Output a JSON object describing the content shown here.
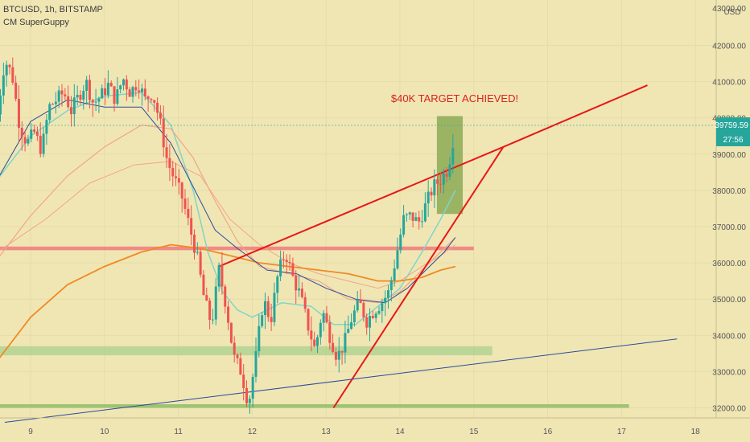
{
  "header": {
    "symbol_line": "BTCUSD, 1h, BITSTAMP",
    "indicator": "CM SuperGuppy",
    "currency": "USD"
  },
  "annotation": "$40K TARGET ACHIEVED!",
  "price_label": {
    "value": "39759.59",
    "countdown": "27:56"
  },
  "colors": {
    "background": "#f0e6b4",
    "candle_up": "#26a69a",
    "candle_down": "#ef5350",
    "trendline": "#e81717",
    "resistance": "#f08080",
    "support_zone": "#a9d08e",
    "ema_fast": "#7fd6c8",
    "ema_slow": "#f3a587",
    "ema_long": "#f08a24",
    "blue_line": "#2a4b9b",
    "target_box": "#7ea34a"
  },
  "chart_data": {
    "type": "candlestick",
    "title": "BTCUSD, 1h, BITSTAMP",
    "ylim": [
      31500,
      43300
    ],
    "x_range": [
      8.55,
      18.2
    ],
    "x_ticks": [
      "9",
      "10",
      "11",
      "12",
      "13",
      "14",
      "15",
      "16",
      "17",
      "18"
    ],
    "y_ticks": [
      "32000.00",
      "33000.00",
      "34000.00",
      "35000.00",
      "36000.00",
      "37000.00",
      "38000.00",
      "39000.00",
      "40000.00",
      "41000.00",
      "42000.00"
    ],
    "y_top_partial": "43000.00",
    "close_path": [
      [
        8.55,
        40100
      ],
      [
        8.65,
        41600
      ],
      [
        8.75,
        41200
      ],
      [
        8.85,
        39800
      ],
      [
        8.95,
        39300
      ],
      [
        9.05,
        39600
      ],
      [
        9.15,
        39100
      ],
      [
        9.25,
        40300
      ],
      [
        9.35,
        40500
      ],
      [
        9.45,
        40700
      ],
      [
        9.55,
        40200
      ],
      [
        9.65,
        40600
      ],
      [
        9.75,
        41000
      ],
      [
        9.85,
        40400
      ],
      [
        9.95,
        40600
      ],
      [
        10.05,
        40900
      ],
      [
        10.15,
        40500
      ],
      [
        10.25,
        41100
      ],
      [
        10.35,
        40700
      ],
      [
        10.45,
        41000
      ],
      [
        10.55,
        40500
      ],
      [
        10.65,
        40700
      ],
      [
        10.75,
        39900
      ],
      [
        10.85,
        38800
      ],
      [
        10.95,
        38300
      ],
      [
        11.05,
        37800
      ],
      [
        11.15,
        37000
      ],
      [
        11.25,
        36200
      ],
      [
        11.35,
        35000
      ],
      [
        11.45,
        34300
      ],
      [
        11.55,
        35800
      ],
      [
        11.65,
        34800
      ],
      [
        11.75,
        33400
      ],
      [
        11.85,
        33000
      ],
      [
        11.95,
        32100
      ],
      [
        12.05,
        33400
      ],
      [
        12.15,
        35000
      ],
      [
        12.25,
        34400
      ],
      [
        12.35,
        35700
      ],
      [
        12.45,
        36300
      ],
      [
        12.55,
        35600
      ],
      [
        12.65,
        35100
      ],
      [
        12.75,
        34300
      ],
      [
        12.85,
        33600
      ],
      [
        12.95,
        34700
      ],
      [
        13.05,
        34000
      ],
      [
        13.15,
        33400
      ],
      [
        13.25,
        33800
      ],
      [
        13.35,
        34500
      ],
      [
        13.45,
        34900
      ],
      [
        13.55,
        34400
      ],
      [
        13.65,
        34700
      ],
      [
        13.75,
        34900
      ],
      [
        13.85,
        35200
      ],
      [
        13.95,
        36200
      ],
      [
        14.05,
        37200
      ],
      [
        14.15,
        37300
      ],
      [
        14.25,
        37100
      ],
      [
        14.35,
        37600
      ],
      [
        14.45,
        38100
      ],
      [
        14.55,
        38300
      ],
      [
        14.65,
        38600
      ],
      [
        14.75,
        39760
      ]
    ],
    "lines": [
      {
        "name": "ema_fast",
        "points": [
          [
            8.55,
            38300
          ],
          [
            9.0,
            39500
          ],
          [
            9.5,
            40200
          ],
          [
            10.0,
            40600
          ],
          [
            10.5,
            40700
          ],
          [
            10.9,
            39800
          ],
          [
            11.2,
            38000
          ],
          [
            11.4,
            36300
          ],
          [
            11.6,
            35200
          ],
          [
            11.8,
            34700
          ],
          [
            12.0,
            34500
          ],
          [
            12.4,
            34900
          ],
          [
            12.8,
            34800
          ],
          [
            13.1,
            34300
          ],
          [
            13.4,
            34300
          ],
          [
            13.7,
            34800
          ],
          [
            14.0,
            35300
          ],
          [
            14.3,
            36300
          ],
          [
            14.55,
            37200
          ],
          [
            14.75,
            38000
          ]
        ]
      },
      {
        "name": "ema_slow",
        "points": [
          [
            8.55,
            36100
          ],
          [
            9.0,
            37300
          ],
          [
            9.5,
            38400
          ],
          [
            10.0,
            39200
          ],
          [
            10.5,
            39800
          ],
          [
            10.9,
            39700
          ],
          [
            11.2,
            38900
          ],
          [
            11.5,
            37700
          ],
          [
            11.8,
            36600
          ],
          [
            12.1,
            35900
          ],
          [
            12.5,
            35700
          ],
          [
            12.9,
            35500
          ],
          [
            13.3,
            35000
          ],
          [
            13.7,
            34900
          ],
          [
            14.0,
            35200
          ],
          [
            14.3,
            35800
          ],
          [
            14.55,
            36300
          ],
          [
            14.75,
            36700
          ]
        ]
      },
      {
        "name": "ema_slow_band",
        "points": [
          [
            8.55,
            36300
          ],
          [
            9.2,
            37200
          ],
          [
            9.8,
            38200
          ],
          [
            10.4,
            38700
          ],
          [
            10.9,
            38800
          ],
          [
            11.3,
            38400
          ],
          [
            11.7,
            37200
          ],
          [
            12.1,
            36500
          ],
          [
            12.5,
            36000
          ],
          [
            12.9,
            35700
          ],
          [
            13.3,
            35500
          ],
          [
            13.7,
            35300
          ],
          [
            14.0,
            35500
          ],
          [
            14.3,
            35900
          ],
          [
            14.55,
            36200
          ],
          [
            14.75,
            36500
          ]
        ]
      },
      {
        "name": "ema_long",
        "points": [
          [
            8.55,
            33300
          ],
          [
            9.0,
            34500
          ],
          [
            9.5,
            35400
          ],
          [
            10.0,
            35900
          ],
          [
            10.5,
            36300
          ],
          [
            10.9,
            36500
          ],
          [
            11.3,
            36400
          ],
          [
            11.7,
            36200
          ],
          [
            12.1,
            36000
          ],
          [
            12.5,
            35900
          ],
          [
            12.9,
            35800
          ],
          [
            13.3,
            35700
          ],
          [
            13.7,
            35500
          ],
          [
            14.0,
            35500
          ],
          [
            14.3,
            35600
          ],
          [
            14.55,
            35800
          ],
          [
            14.75,
            35900
          ]
        ]
      },
      {
        "name": "blue_line",
        "points": [
          [
            8.55,
            38300
          ],
          [
            9.0,
            39900
          ],
          [
            9.5,
            40500
          ],
          [
            10.0,
            40300
          ],
          [
            10.5,
            40300
          ],
          [
            10.9,
            39300
          ],
          [
            11.2,
            38100
          ],
          [
            11.5,
            36900
          ],
          [
            11.8,
            36400
          ],
          [
            12.2,
            35800
          ],
          [
            12.6,
            35700
          ],
          [
            13.0,
            35300
          ],
          [
            13.4,
            35000
          ],
          [
            13.8,
            34900
          ],
          [
            14.1,
            35300
          ],
          [
            14.4,
            35900
          ],
          [
            14.6,
            36300
          ],
          [
            14.75,
            36700
          ]
        ]
      },
      {
        "name": "wedge_upper",
        "points": [
          [
            11.55,
            35900
          ],
          [
            15.4,
            39200
          ],
          [
            17.35,
            40900
          ]
        ]
      },
      {
        "name": "wedge_lower",
        "points": [
          [
            13.1,
            32000
          ],
          [
            15.4,
            39200
          ]
        ]
      },
      {
        "name": "long_trend",
        "points": [
          [
            8.65,
            31600
          ],
          [
            17.75,
            33900
          ]
        ]
      }
    ],
    "zones": [
      {
        "name": "resistance",
        "x": [
          8.55,
          15.0
        ],
        "y": [
          36350,
          36450
        ]
      },
      {
        "name": "support_upper",
        "x": [
          8.55,
          15.25
        ],
        "y": [
          33450,
          33700
        ]
      },
      {
        "name": "support_lower",
        "x": [
          8.55,
          17.1
        ],
        "y": [
          32000,
          32100
        ]
      },
      {
        "name": "target_box",
        "x": [
          14.5,
          14.85
        ],
        "y": [
          37350,
          40050
        ]
      }
    ],
    "current_price": 39759.59
  }
}
